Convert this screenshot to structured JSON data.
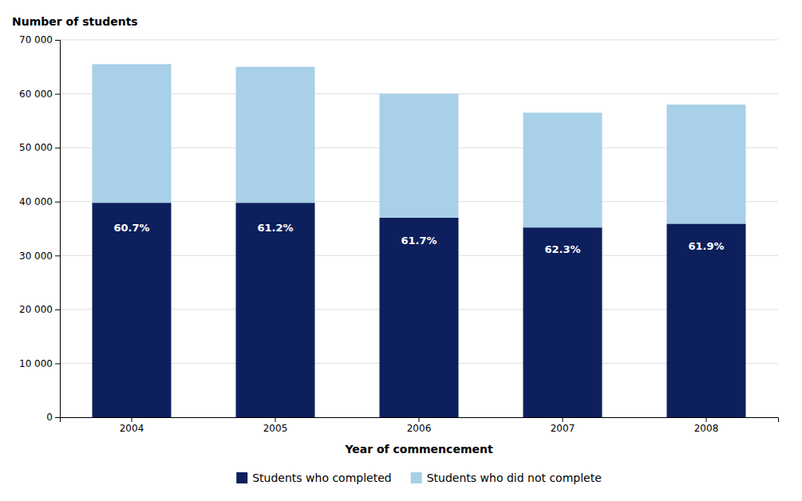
{
  "chart_data": {
    "type": "bar",
    "stacked": true,
    "xlabel": "Year of commencement",
    "ylabel": "Number of students",
    "categories": [
      "2004",
      "2005",
      "2006",
      "2007",
      "2008"
    ],
    "series": [
      {
        "name": "Students who completed",
        "color": "#0d1f5c",
        "values": [
          39785,
          39780,
          37020,
          35198,
          35902
        ]
      },
      {
        "name": "Students who did not complete",
        "color": "#a8d0e8",
        "values": [
          25715,
          25220,
          22980,
          21302,
          22098
        ]
      }
    ],
    "annotations": [
      "60.7%",
      "61.2%",
      "61.7%",
      "62.3%",
      "61.9%"
    ],
    "ylim": [
      0,
      70000
    ],
    "yticks": [
      0,
      {
        "value": 10000,
        "label": "10 000"
      },
      {
        "value": 20000,
        "label": "20 000"
      },
      {
        "value": 30000,
        "label": "30 000"
      },
      {
        "value": 40000,
        "label": "40 000"
      },
      {
        "value": 50000,
        "label": "50 000"
      },
      {
        "value": 60000,
        "label": "60 000"
      },
      {
        "value": 70000,
        "label": "70 000"
      }
    ],
    "grid": true,
    "legend": "bottom"
  }
}
